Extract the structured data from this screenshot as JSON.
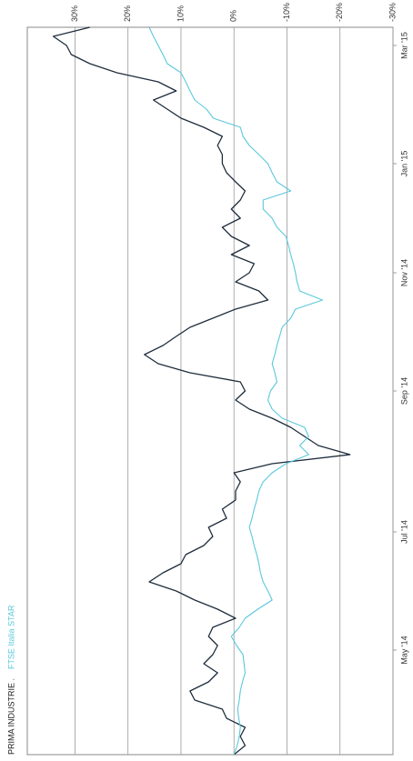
{
  "chart_data": {
    "type": "line",
    "x": [
      0,
      1,
      2,
      3,
      4,
      5,
      6,
      7,
      8,
      9,
      10,
      11,
      12,
      13,
      14,
      15,
      16,
      17,
      18,
      19,
      20,
      21,
      22,
      23,
      24,
      25,
      26,
      27,
      28,
      29,
      30,
      31,
      32,
      33,
      34,
      35,
      36,
      37,
      38,
      39,
      40,
      41,
      42,
      43,
      44,
      45,
      46,
      47,
      48,
      49,
      50,
      51,
      52,
      53,
      54,
      55,
      56,
      57,
      58,
      59,
      60,
      61,
      62,
      63,
      64,
      65,
      66,
      67,
      68,
      69,
      70,
      71,
      72,
      73,
      74,
      75,
      76,
      77,
      78,
      79,
      80
    ],
    "series": [
      {
        "name": "PRIMA INDUSTRIE .",
        "color": "#1f2d3d",
        "values": [
          0,
          -2.1,
          -1.2,
          -2.1,
          1.4,
          2.2,
          7.4,
          8.3,
          4.8,
          3.1,
          5.7,
          4.0,
          3.1,
          4.8,
          4.0,
          -0.3,
          3.1,
          7.4,
          10.9,
          16.0,
          13.4,
          10.0,
          9.1,
          5.7,
          4.0,
          4.8,
          1.4,
          2.2,
          -0.3,
          -0.3,
          -1.2,
          0,
          -7.2,
          -21.9,
          -15.9,
          -13.3,
          -10.7,
          -7.2,
          -2.9,
          -0.3,
          -2.1,
          -1.2,
          8.3,
          14.3,
          16.9,
          13.4,
          10.9,
          8.3,
          4.0,
          -0.3,
          -6.4,
          -4.7,
          -0.3,
          -2.9,
          -3.8,
          0.5,
          -2.9,
          0.5,
          2.2,
          -1.2,
          0.5,
          -1.2,
          -2.1,
          -0.3,
          1.4,
          2.2,
          2.2,
          3.1,
          2.2,
          5.7,
          10.0,
          12.6,
          15.2,
          10.9,
          14.3,
          22.1,
          27.2,
          30.7,
          31.6,
          34.1,
          27.2
        ]
      },
      {
        "name": "FTSE Italia STAR",
        "color": "#5bc8dc",
        "values": [
          0,
          -0.6,
          -1.0,
          -1.2,
          -0.9,
          -0.7,
          -1.0,
          -1.2,
          -1.6,
          -2.1,
          -1.9,
          -1.7,
          -0.5,
          0.5,
          -1.0,
          -2.1,
          -4.5,
          -7.2,
          -6.4,
          -5.5,
          -5.0,
          -4.7,
          -4.3,
          -3.8,
          -3.4,
          -2.9,
          -3.4,
          -3.8,
          -4.3,
          -4.7,
          -5.5,
          -7.2,
          -9.8,
          -14.1,
          -12.4,
          -14.1,
          -13.3,
          -9.1,
          -7.2,
          -6.4,
          -6.9,
          -8.1,
          -7.7,
          -7.2,
          -7.7,
          -8.1,
          -8.6,
          -9.1,
          -10.7,
          -11.6,
          -16.7,
          -12.4,
          -11.9,
          -11.6,
          -11.2,
          -10.7,
          -10.3,
          -9.8,
          -8.1,
          -7.2,
          -5.5,
          -5.5,
          -10.7,
          -8.1,
          -7.2,
          -6.4,
          -4.7,
          -2.9,
          -1.7,
          -1.2,
          3.9,
          5.2,
          7.4,
          8.3,
          9.1,
          10.0,
          12.6,
          13.4,
          14.3,
          15.2,
          16.0
        ]
      }
    ],
    "xlim": [
      0,
      80
    ],
    "xticks": [
      {
        "value": 11.5,
        "label": "May '14"
      },
      {
        "value": 24.5,
        "label": "Jul '14"
      },
      {
        "value": 40,
        "label": "Sep '14"
      },
      {
        "value": 53,
        "label": "Nov '14"
      },
      {
        "value": 65,
        "label": "Jan '15"
      },
      {
        "value": 78,
        "label": "Mar '15"
      }
    ],
    "ylim": [
      -30,
      39
    ],
    "yticks": [
      {
        "value": 30,
        "label": "30%"
      },
      {
        "value": 20,
        "label": "20%"
      },
      {
        "value": 10,
        "label": "10%"
      },
      {
        "value": 0,
        "label": "0%"
      },
      {
        "value": -10,
        "label": "-10%"
      },
      {
        "value": -20,
        "label": "-20%"
      },
      {
        "value": -30,
        "label": "-30%"
      }
    ],
    "grid": true
  }
}
